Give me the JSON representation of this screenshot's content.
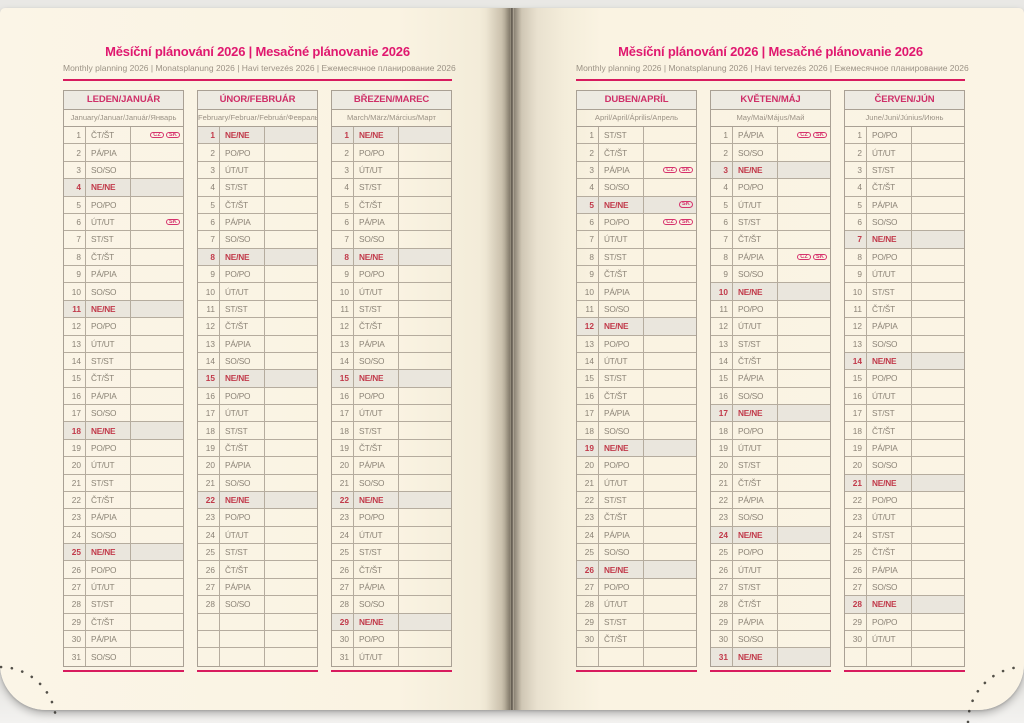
{
  "book": {
    "title": "Měsíční plánování 2026 | Mesačné plánovanie 2026",
    "subtitle": "Monthly planning 2026 | Monatsplanung 2026 | Havi tervezés 2026 | Ежемесячное планирование 2026"
  },
  "colors": {
    "accent_pink": "#e0186f",
    "rule_pink": "#d81b5e",
    "sunday_red": "#c13a4a",
    "page_cream": "#faf3e2",
    "shaded_row": "#eae6dd",
    "grid_border": "#a9a094"
  },
  "rows_per_month": 31,
  "sunday_code": "NE/NE",
  "badge_labels": [
    "CZ",
    "SK"
  ],
  "months": [
    {
      "id": "leden-januar",
      "name": "LEDEN/JANUÁR",
      "subtitle": "January/Januar/Január/Январь",
      "days": [
        [
          1,
          "ČT/ŠT",
          [
            "CZ",
            "SK"
          ]
        ],
        [
          2,
          "PÁ/PIA"
        ],
        [
          3,
          "SO/SO"
        ],
        [
          4,
          "NE/NE"
        ],
        [
          5,
          "PO/PO"
        ],
        [
          6,
          "ÚT/UT",
          [
            "SK"
          ]
        ],
        [
          7,
          "ST/ST"
        ],
        [
          8,
          "ČT/ŠT"
        ],
        [
          9,
          "PÁ/PIA"
        ],
        [
          10,
          "SO/SO"
        ],
        [
          11,
          "NE/NE"
        ],
        [
          12,
          "PO/PO"
        ],
        [
          13,
          "ÚT/UT"
        ],
        [
          14,
          "ST/ST"
        ],
        [
          15,
          "ČT/ŠT"
        ],
        [
          16,
          "PÁ/PIA"
        ],
        [
          17,
          "SO/SO"
        ],
        [
          18,
          "NE/NE"
        ],
        [
          19,
          "PO/PO"
        ],
        [
          20,
          "ÚT/UT"
        ],
        [
          21,
          "ST/ST"
        ],
        [
          22,
          "ČT/ŠT"
        ],
        [
          23,
          "PÁ/PIA"
        ],
        [
          24,
          "SO/SO"
        ],
        [
          25,
          "NE/NE"
        ],
        [
          26,
          "PO/PO"
        ],
        [
          27,
          "ÚT/UT"
        ],
        [
          28,
          "ST/ST"
        ],
        [
          29,
          "ČT/ŠT"
        ],
        [
          30,
          "PÁ/PIA"
        ],
        [
          31,
          "SO/SO"
        ]
      ]
    },
    {
      "id": "unor-februar",
      "name": "ÚNOR/FEBRUÁR",
      "subtitle": "February/Februar/Február/Февраль",
      "days": [
        [
          1,
          "NE/NE"
        ],
        [
          2,
          "PO/PO"
        ],
        [
          3,
          "ÚT/UT"
        ],
        [
          4,
          "ST/ST"
        ],
        [
          5,
          "ČT/ŠT"
        ],
        [
          6,
          "PÁ/PIA"
        ],
        [
          7,
          "SO/SO"
        ],
        [
          8,
          "NE/NE"
        ],
        [
          9,
          "PO/PO"
        ],
        [
          10,
          "ÚT/UT"
        ],
        [
          11,
          "ST/ST"
        ],
        [
          12,
          "ČT/ŠT"
        ],
        [
          13,
          "PÁ/PIA"
        ],
        [
          14,
          "SO/SO"
        ],
        [
          15,
          "NE/NE"
        ],
        [
          16,
          "PO/PO"
        ],
        [
          17,
          "ÚT/UT"
        ],
        [
          18,
          "ST/ST"
        ],
        [
          19,
          "ČT/ŠT"
        ],
        [
          20,
          "PÁ/PIA"
        ],
        [
          21,
          "SO/SO"
        ],
        [
          22,
          "NE/NE"
        ],
        [
          23,
          "PO/PO"
        ],
        [
          24,
          "ÚT/UT"
        ],
        [
          25,
          "ST/ST"
        ],
        [
          26,
          "ČT/ŠT"
        ],
        [
          27,
          "PÁ/PIA"
        ],
        [
          28,
          "SO/SO"
        ]
      ]
    },
    {
      "id": "brezen-marec",
      "name": "BŘEZEN/MAREC",
      "subtitle": "March/März/Március/Март",
      "days": [
        [
          1,
          "NE/NE"
        ],
        [
          2,
          "PO/PO"
        ],
        [
          3,
          "ÚT/UT"
        ],
        [
          4,
          "ST/ST"
        ],
        [
          5,
          "ČT/ŠT"
        ],
        [
          6,
          "PÁ/PIA"
        ],
        [
          7,
          "SO/SO"
        ],
        [
          8,
          "NE/NE"
        ],
        [
          9,
          "PO/PO"
        ],
        [
          10,
          "ÚT/UT"
        ],
        [
          11,
          "ST/ST"
        ],
        [
          12,
          "ČT/ŠT"
        ],
        [
          13,
          "PÁ/PIA"
        ],
        [
          14,
          "SO/SO"
        ],
        [
          15,
          "NE/NE"
        ],
        [
          16,
          "PO/PO"
        ],
        [
          17,
          "ÚT/UT"
        ],
        [
          18,
          "ST/ST"
        ],
        [
          19,
          "ČT/ŠT"
        ],
        [
          20,
          "PÁ/PIA"
        ],
        [
          21,
          "SO/SO"
        ],
        [
          22,
          "NE/NE"
        ],
        [
          23,
          "PO/PO"
        ],
        [
          24,
          "ÚT/UT"
        ],
        [
          25,
          "ST/ST"
        ],
        [
          26,
          "ČT/ŠT"
        ],
        [
          27,
          "PÁ/PIA"
        ],
        [
          28,
          "SO/SO"
        ],
        [
          29,
          "NE/NE"
        ],
        [
          30,
          "PO/PO"
        ],
        [
          31,
          "ÚT/UT"
        ]
      ]
    },
    {
      "id": "duben-april",
      "name": "DUBEN/APRÍL",
      "subtitle": "April/April/Április/Апрель",
      "days": [
        [
          1,
          "ST/ST"
        ],
        [
          2,
          "ČT/ŠT"
        ],
        [
          3,
          "PÁ/PIA",
          [
            "CZ",
            "SK"
          ]
        ],
        [
          4,
          "SO/SO"
        ],
        [
          5,
          "NE/NE",
          [
            "SK"
          ]
        ],
        [
          6,
          "PO/PO",
          [
            "CZ",
            "SK"
          ]
        ],
        [
          7,
          "ÚT/UT"
        ],
        [
          8,
          "ST/ST"
        ],
        [
          9,
          "ČT/ŠT"
        ],
        [
          10,
          "PÁ/PIA"
        ],
        [
          11,
          "SO/SO"
        ],
        [
          12,
          "NE/NE"
        ],
        [
          13,
          "PO/PO"
        ],
        [
          14,
          "ÚT/UT"
        ],
        [
          15,
          "ST/ST"
        ],
        [
          16,
          "ČT/ŠT"
        ],
        [
          17,
          "PÁ/PIA"
        ],
        [
          18,
          "SO/SO"
        ],
        [
          19,
          "NE/NE"
        ],
        [
          20,
          "PO/PO"
        ],
        [
          21,
          "ÚT/UT"
        ],
        [
          22,
          "ST/ST"
        ],
        [
          23,
          "ČT/ŠT"
        ],
        [
          24,
          "PÁ/PIA"
        ],
        [
          25,
          "SO/SO"
        ],
        [
          26,
          "NE/NE"
        ],
        [
          27,
          "PO/PO"
        ],
        [
          28,
          "ÚT/UT"
        ],
        [
          29,
          "ST/ST"
        ],
        [
          30,
          "ČT/ŠT"
        ]
      ]
    },
    {
      "id": "kveten-maj",
      "name": "KVĚTEN/MÁJ",
      "subtitle": "May/Mai/Május/Май",
      "days": [
        [
          1,
          "PÁ/PIA",
          [
            "CZ",
            "SK"
          ]
        ],
        [
          2,
          "SO/SO"
        ],
        [
          3,
          "NE/NE"
        ],
        [
          4,
          "PO/PO"
        ],
        [
          5,
          "ÚT/UT"
        ],
        [
          6,
          "ST/ST"
        ],
        [
          7,
          "ČT/ŠT"
        ],
        [
          8,
          "PÁ/PIA",
          [
            "CZ",
            "SK"
          ]
        ],
        [
          9,
          "SO/SO"
        ],
        [
          10,
          "NE/NE"
        ],
        [
          11,
          "PO/PO"
        ],
        [
          12,
          "ÚT/UT"
        ],
        [
          13,
          "ST/ST"
        ],
        [
          14,
          "ČT/ŠT"
        ],
        [
          15,
          "PÁ/PIA"
        ],
        [
          16,
          "SO/SO"
        ],
        [
          17,
          "NE/NE"
        ],
        [
          18,
          "PO/PO"
        ],
        [
          19,
          "ÚT/UT"
        ],
        [
          20,
          "ST/ST"
        ],
        [
          21,
          "ČT/ŠT"
        ],
        [
          22,
          "PÁ/PIA"
        ],
        [
          23,
          "SO/SO"
        ],
        [
          24,
          "NE/NE"
        ],
        [
          25,
          "PO/PO"
        ],
        [
          26,
          "ÚT/UT"
        ],
        [
          27,
          "ST/ST"
        ],
        [
          28,
          "ČT/ŠT"
        ],
        [
          29,
          "PÁ/PIA"
        ],
        [
          30,
          "SO/SO"
        ],
        [
          31,
          "NE/NE"
        ]
      ]
    },
    {
      "id": "cerven-jun",
      "name": "ČERVEN/JÚN",
      "subtitle": "June/Juni/Június/Июнь",
      "days": [
        [
          1,
          "PO/PO"
        ],
        [
          2,
          "ÚT/UT"
        ],
        [
          3,
          "ST/ST"
        ],
        [
          4,
          "ČT/ŠT"
        ],
        [
          5,
          "PÁ/PIA"
        ],
        [
          6,
          "SO/SO"
        ],
        [
          7,
          "NE/NE"
        ],
        [
          8,
          "PO/PO"
        ],
        [
          9,
          "ÚT/UT"
        ],
        [
          10,
          "ST/ST"
        ],
        [
          11,
          "ČT/ŠT"
        ],
        [
          12,
          "PÁ/PIA"
        ],
        [
          13,
          "SO/SO"
        ],
        [
          14,
          "NE/NE"
        ],
        [
          15,
          "PO/PO"
        ],
        [
          16,
          "ÚT/UT"
        ],
        [
          17,
          "ST/ST"
        ],
        [
          18,
          "ČT/ŠT"
        ],
        [
          19,
          "PÁ/PIA"
        ],
        [
          20,
          "SO/SO"
        ],
        [
          21,
          "NE/NE"
        ],
        [
          22,
          "PO/PO"
        ],
        [
          23,
          "ÚT/UT"
        ],
        [
          24,
          "ST/ST"
        ],
        [
          25,
          "ČT/ŠT"
        ],
        [
          26,
          "PÁ/PIA"
        ],
        [
          27,
          "SO/SO"
        ],
        [
          28,
          "NE/NE"
        ],
        [
          29,
          "PO/PO"
        ],
        [
          30,
          "ÚT/UT"
        ]
      ]
    }
  ]
}
